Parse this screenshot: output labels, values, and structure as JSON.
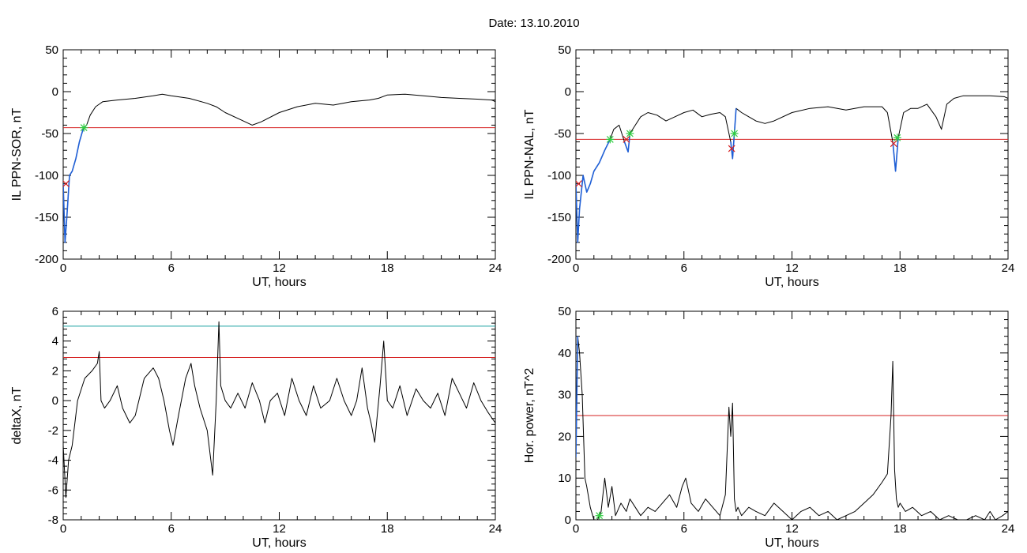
{
  "title": "Date:  13.10.2010",
  "colors": {
    "series": "#000000",
    "highlight": "#1f5fd6",
    "threshold": "#d62020",
    "threshold_upper": "#1aa0a0",
    "marker_x": "#d62020",
    "marker_star": "#2ecc40"
  },
  "chart_data": [
    {
      "type": "line",
      "xlabel": "UT, hours",
      "ylabel": "IL PPN-SOR, nT",
      "xlim": [
        0,
        24
      ],
      "ylim": [
        -200,
        50
      ],
      "xticks": [
        0,
        6,
        12,
        18,
        24
      ],
      "xtick_labels": [
        "0",
        "6",
        "12",
        "18",
        "24"
      ],
      "yticks": [
        -200,
        -150,
        -100,
        -50,
        0,
        50
      ],
      "ytick_labels": [
        "-200",
        "-150",
        "-100",
        "-50",
        "0",
        "50"
      ],
      "series": [
        {
          "role": "main",
          "color": "#000000",
          "x": [
            0,
            0.1,
            0.2,
            0.35,
            0.5,
            0.7,
            0.9,
            1.1,
            1.3,
            1.5,
            1.8,
            2.2,
            3,
            4,
            5,
            5.5,
            6,
            7,
            8,
            8.5,
            9,
            10,
            10.5,
            11,
            12,
            13,
            14,
            15,
            16,
            17,
            17.5,
            18,
            19,
            20,
            21,
            22,
            23,
            23.8,
            24
          ],
          "y": [
            -110,
            -180,
            -150,
            -100,
            -95,
            -80,
            -60,
            -45,
            -40,
            -28,
            -18,
            -12,
            -10,
            -8,
            -5,
            -3,
            -5,
            -8,
            -14,
            -18,
            -25,
            -35,
            -40,
            -36,
            -25,
            -18,
            -14,
            -16,
            -12,
            -10,
            -8,
            -4,
            -3,
            -5,
            -7,
            -8,
            -9,
            -10,
            -12
          ]
        },
        {
          "role": "highlight",
          "color": "#1f5fd6",
          "x": [
            0,
            0.1,
            0.2,
            0.35,
            0.5,
            0.7,
            0.9,
            1.1
          ],
          "y": [
            -110,
            -180,
            -150,
            -100,
            -95,
            -80,
            -60,
            -45
          ]
        }
      ],
      "thresholds": [
        {
          "y": -43,
          "color": "#d62020"
        }
      ],
      "markers": [
        {
          "x": 0.15,
          "y": -110,
          "shape": "x",
          "color": "#d62020"
        },
        {
          "x": 1.15,
          "y": -43,
          "shape": "star",
          "color": "#2ecc40"
        }
      ]
    },
    {
      "type": "line",
      "xlabel": "UT, hours",
      "ylabel": "IL PPN-NAL, nT",
      "xlim": [
        0,
        24
      ],
      "ylim": [
        -200,
        50
      ],
      "xticks": [
        0,
        6,
        12,
        18,
        24
      ],
      "xtick_labels": [
        "0",
        "6",
        "12",
        "18",
        "24"
      ],
      "yticks": [
        -200,
        -150,
        -100,
        -50,
        0,
        50
      ],
      "ytick_labels": [
        "-200",
        "-150",
        "-100",
        "-50",
        "0",
        "50"
      ],
      "series": [
        {
          "role": "main",
          "color": "#000000",
          "x": [
            0,
            0.1,
            0.2,
            0.4,
            0.6,
            0.8,
            1.0,
            1.3,
            1.6,
            1.9,
            2.1,
            2.4,
            2.7,
            2.9,
            3.0,
            3.3,
            3.6,
            4,
            4.5,
            5,
            5.5,
            6,
            6.5,
            7,
            7.5,
            8,
            8.3,
            8.6,
            8.7,
            8.9,
            9.2,
            9.6,
            10,
            10.5,
            11,
            12,
            13,
            14,
            15,
            16,
            17,
            17.3,
            17.6,
            17.75,
            17.9,
            18.2,
            18.6,
            19,
            19.5,
            20,
            20.3,
            20.6,
            21,
            21.5,
            22,
            23,
            23.8,
            24
          ],
          "y": [
            -110,
            -180,
            -140,
            -100,
            -120,
            -110,
            -95,
            -85,
            -70,
            -57,
            -45,
            -40,
            -60,
            -72,
            -50,
            -40,
            -30,
            -25,
            -28,
            -35,
            -30,
            -25,
            -22,
            -30,
            -27,
            -25,
            -30,
            -60,
            -80,
            -20,
            -25,
            -30,
            -35,
            -38,
            -35,
            -25,
            -20,
            -18,
            -22,
            -18,
            -18,
            -25,
            -60,
            -95,
            -55,
            -25,
            -20,
            -20,
            -15,
            -30,
            -45,
            -15,
            -8,
            -5,
            -5,
            -5,
            -6,
            -8
          ]
        },
        {
          "role": "highlight",
          "color": "#1f5fd6",
          "x": [
            0,
            0.1,
            0.2,
            0.4,
            0.6,
            0.8,
            1.0,
            1.3,
            1.6,
            1.9
          ],
          "y": [
            -110,
            -180,
            -140,
            -100,
            -120,
            -110,
            -95,
            -85,
            -70,
            -57
          ]
        },
        {
          "role": "highlight",
          "color": "#1f5fd6",
          "x": [
            2.7,
            2.9,
            3.0
          ],
          "y": [
            -60,
            -72,
            -50
          ]
        },
        {
          "role": "highlight",
          "color": "#1f5fd6",
          "x": [
            8.6,
            8.7,
            8.9
          ],
          "y": [
            -60,
            -80,
            -20
          ]
        },
        {
          "role": "highlight",
          "color": "#1f5fd6",
          "x": [
            17.6,
            17.75,
            17.9
          ],
          "y": [
            -60,
            -95,
            -55
          ]
        }
      ],
      "thresholds": [
        {
          "y": -57,
          "color": "#d62020"
        }
      ],
      "markers": [
        {
          "x": 0.15,
          "y": -110,
          "shape": "x",
          "color": "#d62020"
        },
        {
          "x": 1.9,
          "y": -57,
          "shape": "star",
          "color": "#2ecc40"
        },
        {
          "x": 2.8,
          "y": -57,
          "shape": "x",
          "color": "#d62020"
        },
        {
          "x": 3.0,
          "y": -50,
          "shape": "star",
          "color": "#2ecc40"
        },
        {
          "x": 8.65,
          "y": -68,
          "shape": "x",
          "color": "#d62020"
        },
        {
          "x": 8.8,
          "y": -50,
          "shape": "star",
          "color": "#2ecc40"
        },
        {
          "x": 17.65,
          "y": -62,
          "shape": "x",
          "color": "#d62020"
        },
        {
          "x": 17.85,
          "y": -55,
          "shape": "star",
          "color": "#2ecc40"
        }
      ]
    },
    {
      "type": "line",
      "xlabel": "UT, hours",
      "ylabel": "deltaX, nT",
      "xlim": [
        0,
        24
      ],
      "ylim": [
        -8,
        6
      ],
      "xticks": [
        0,
        6,
        12,
        18,
        24
      ],
      "xtick_labels": [
        "0",
        "6",
        "12",
        "18",
        "24"
      ],
      "yticks": [
        -8,
        -6,
        -4,
        -2,
        0,
        2,
        4,
        6
      ],
      "ytick_labels": [
        "-8",
        "-6",
        "-4",
        "-2",
        "0",
        "2",
        "4",
        "6"
      ],
      "series": [
        {
          "role": "main",
          "color": "#000000",
          "x": [
            0,
            0.15,
            0.3,
            0.5,
            0.8,
            1.2,
            1.6,
            1.9,
            2.0,
            2.1,
            2.3,
            2.6,
            3.0,
            3.3,
            3.7,
            4.0,
            4.5,
            5.0,
            5.3,
            5.6,
            5.9,
            6.1,
            6.4,
            6.8,
            7.1,
            7.3,
            7.6,
            8.0,
            8.3,
            8.5,
            8.65,
            8.75,
            9.0,
            9.3,
            9.7,
            10.1,
            10.5,
            10.9,
            11.2,
            11.5,
            11.9,
            12.3,
            12.7,
            13.1,
            13.5,
            13.9,
            14.3,
            14.8,
            15.2,
            15.6,
            16.0,
            16.3,
            16.6,
            16.9,
            17.1,
            17.3,
            17.6,
            17.8,
            18.0,
            18.3,
            18.7,
            19.1,
            19.6,
            20.0,
            20.4,
            20.8,
            21.2,
            21.6,
            22.0,
            22.4,
            22.8,
            23.2,
            23.6,
            24.0
          ],
          "y": [
            -3,
            -6.5,
            -4,
            -3,
            0,
            1.5,
            2,
            2.5,
            3.3,
            0,
            -0.5,
            0,
            1,
            -0.5,
            -1.5,
            -1,
            1.5,
            2.2,
            1.5,
            0,
            -2,
            -3,
            -1,
            1.5,
            2.5,
            1,
            -0.5,
            -2,
            -5,
            0,
            5.3,
            1,
            0,
            -0.5,
            0.5,
            -0.5,
            1.2,
            0,
            -1.5,
            0,
            0.5,
            -1,
            1.5,
            0,
            -1,
            1,
            -0.5,
            0,
            1.5,
            0,
            -1,
            0,
            2.2,
            -0.5,
            -1.5,
            -2.8,
            1,
            4,
            0,
            -0.5,
            1,
            -1,
            0.8,
            0,
            -0.5,
            0.5,
            -1,
            1.5,
            0.5,
            -0.5,
            1.2,
            0,
            -0.8,
            -1.5
          ]
        }
      ],
      "thresholds": [
        {
          "y": 2.9,
          "color": "#d62020"
        },
        {
          "y": 5.0,
          "color": "#1aa0a0"
        }
      ],
      "markers": []
    },
    {
      "type": "line",
      "xlabel": "UT, hours",
      "ylabel": "Hor. power, nT^2",
      "xlim": [
        0,
        24
      ],
      "ylim": [
        0,
        50
      ],
      "xticks": [
        0,
        6,
        12,
        18,
        24
      ],
      "xtick_labels": [
        "0",
        "6",
        "12",
        "18",
        "24"
      ],
      "yticks": [
        0,
        10,
        20,
        30,
        40,
        50
      ],
      "ytick_labels": [
        "0",
        "10",
        "20",
        "30",
        "40",
        "50"
      ],
      "series": [
        {
          "role": "main",
          "color": "#000000",
          "x": [
            0,
            0.1,
            0.2,
            0.35,
            0.5,
            0.6,
            0.8,
            1.0,
            1.2,
            1.4,
            1.6,
            1.8,
            2.0,
            2.2,
            2.5,
            2.8,
            3.0,
            3.3,
            3.6,
            4.0,
            4.4,
            4.8,
            5.2,
            5.6,
            5.9,
            6.1,
            6.4,
            6.8,
            7.2,
            7.6,
            8.0,
            8.3,
            8.5,
            8.6,
            8.7,
            8.8,
            8.9,
            9.0,
            9.2,
            9.6,
            10.0,
            10.5,
            11.0,
            11.5,
            12.0,
            12.5,
            13.0,
            13.5,
            14.0,
            14.5,
            15.0,
            15.5,
            16.0,
            16.5,
            17.0,
            17.3,
            17.5,
            17.6,
            17.7,
            17.8,
            17.9,
            18.0,
            18.3,
            18.7,
            19.2,
            19.7,
            20.2,
            20.7,
            21.2,
            21.7,
            22.2,
            22.7,
            23.0,
            23.3,
            23.7,
            24.0
          ],
          "y": [
            15,
            44,
            40,
            30,
            10,
            8,
            3,
            0,
            0,
            2,
            10,
            3,
            8,
            1,
            4,
            2,
            5,
            3,
            1,
            3,
            2,
            4,
            6,
            3,
            8,
            10,
            4,
            2,
            5,
            3,
            1,
            6,
            27,
            20,
            28,
            5,
            2,
            3,
            1,
            3,
            2,
            1,
            4,
            2,
            0,
            2,
            3,
            1,
            2,
            0,
            1,
            2,
            4,
            6,
            9,
            11,
            25,
            38,
            12,
            5,
            3,
            4,
            2,
            3,
            1,
            2,
            0,
            1,
            0,
            0,
            1,
            0,
            2,
            0,
            1,
            2
          ]
        },
        {
          "role": "highlight",
          "color": "#1f5fd6",
          "x": [
            0,
            0.1
          ],
          "y": [
            15,
            44
          ]
        }
      ],
      "thresholds": [
        {
          "y": 25,
          "color": "#d62020"
        }
      ],
      "markers": [
        {
          "x": 1.3,
          "y": 1,
          "shape": "star",
          "color": "#2ecc40"
        }
      ]
    }
  ]
}
